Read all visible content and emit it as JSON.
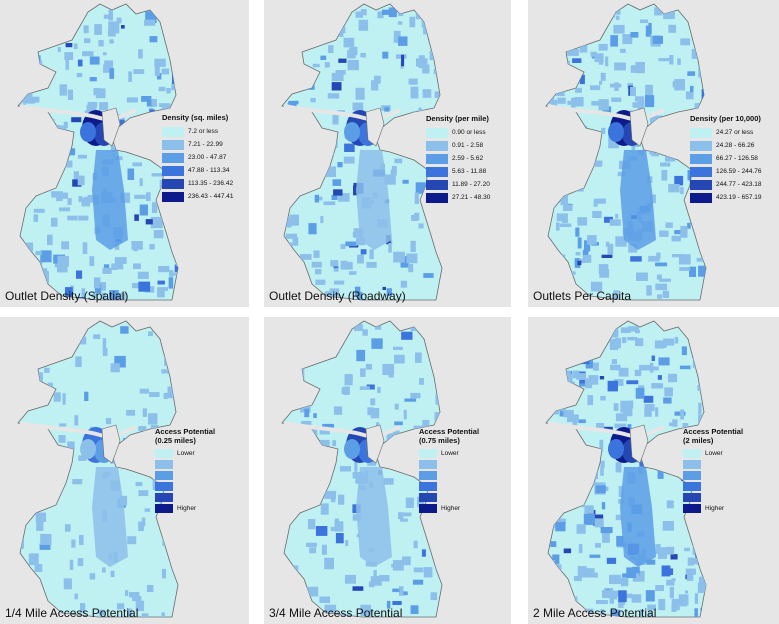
{
  "colors": {
    "panel_bg": "#e6e6e6",
    "water_border": "#6b6b6b",
    "base": "#bff0f2",
    "classes": [
      "#bff0f2",
      "#8cc0ea",
      "#5b9ee6",
      "#3a74dc",
      "#2447b4",
      "#0d1a8c"
    ]
  },
  "panels": [
    {
      "caption": "Outlet Density (Spatial)",
      "legend": {
        "type": "classes",
        "title_lines": [
          "Density (sq. miles)"
        ],
        "items": [
          "7.2 or less",
          "7.21 - 22.99",
          "23.00 - 47.87",
          "47.88 - 113.34",
          "113.35 - 236.42",
          "236.43 - 447.41"
        ]
      },
      "hotspot_level": 5,
      "intensity": 0.55
    },
    {
      "caption": "Outlet Density (Roadway)",
      "legend": {
        "type": "classes",
        "title_lines": [
          "Density (per mile)"
        ],
        "items": [
          "0.90 or less",
          "0.91 - 2.58",
          "2.59 - 5.62",
          "5.63 - 11.88",
          "11.89 - 27.20",
          "27.21 - 48.30"
        ]
      },
      "hotspot_level": 4,
      "intensity": 0.5
    },
    {
      "caption": "Outlets Per Capita",
      "legend": {
        "type": "classes",
        "title_lines": [
          "Density (per 10,000)"
        ],
        "items": [
          "24.27 or less",
          "24.28 - 66.26",
          "66.27 - 126.58",
          "126.59 - 244.76",
          "244.77 - 423.18",
          "423.19 - 657.19"
        ]
      },
      "hotspot_level": 5,
      "intensity": 0.6
    },
    {
      "caption": "1/4 Mile Access Potential",
      "legend": {
        "type": "gradient",
        "title_lines": [
          "Access Potential",
          "(0.25 miles)"
        ],
        "low": "Lower",
        "high": "Higher"
      },
      "hotspot_level": 3,
      "intensity": 0.15
    },
    {
      "caption": "3/4 Mile Access Potential",
      "legend": {
        "type": "gradient",
        "title_lines": [
          "Access Potential",
          "(0.75 miles)"
        ],
        "low": "Lower",
        "high": "Higher"
      },
      "hotspot_level": 4,
      "intensity": 0.3
    },
    {
      "caption": "2 Mile Access Potential",
      "legend": {
        "type": "gradient",
        "title_lines": [
          "Access Potential",
          "(2 miles)"
        ],
        "low": "Lower",
        "high": "Higher"
      },
      "hotspot_level": 5,
      "intensity": 0.75
    }
  ]
}
